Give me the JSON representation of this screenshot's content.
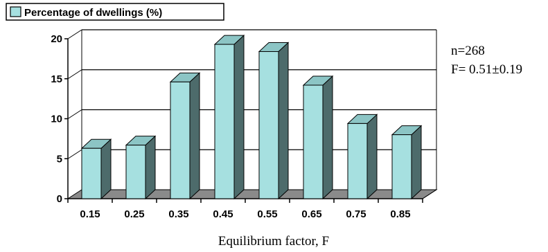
{
  "chart_data": {
    "type": "bar",
    "categories": [
      "0.15",
      "0.25",
      "0.35",
      "0.45",
      "0.55",
      "0.65",
      "0.75",
      "0.85"
    ],
    "series": [
      {
        "name": "Percentage of dwellings (%)",
        "values": [
          6.3,
          6.7,
          14.6,
          19.3,
          18.4,
          14.2,
          9.4,
          8.0
        ]
      }
    ],
    "title": "",
    "xlabel": "Equilibrium factor, F",
    "ylabel": "",
    "ylim": [
      0,
      20
    ],
    "yticks": [
      "0",
      "5",
      "10",
      "15",
      "20"
    ],
    "grid": true,
    "style": "3d-column",
    "legend": "top-left",
    "annotations": [
      "n=268",
      "F= 0.51±0.19"
    ],
    "colors": {
      "bar_front": "#a6e0e0",
      "bar_side": "#4d6b6b",
      "bar_top": "#8cc5c5",
      "floor": "#8a8a8a",
      "wall": "#ffffff"
    }
  }
}
